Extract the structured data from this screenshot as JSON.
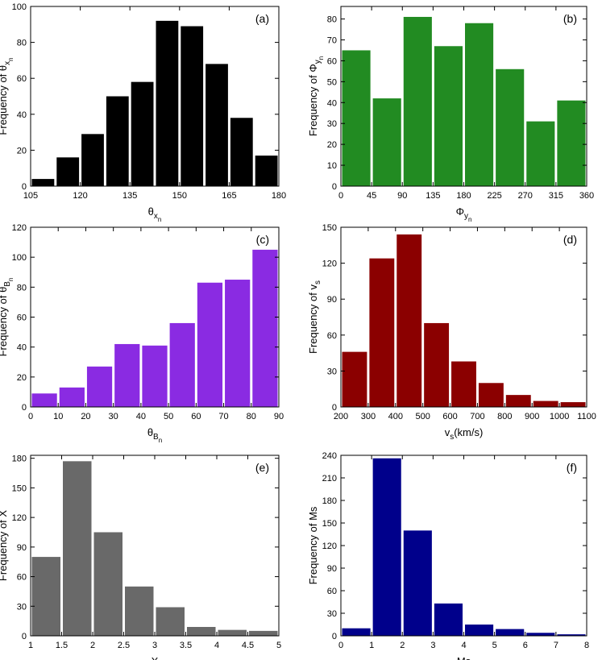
{
  "chart_data": [
    {
      "type": "histogram",
      "title": "(a)",
      "color": "#000000",
      "bins": [
        105,
        112.5,
        120,
        127.5,
        135,
        142.5,
        150,
        157.5,
        165,
        172.5,
        180
      ],
      "values": [
        4,
        16,
        29,
        50,
        58,
        92,
        89,
        68,
        38,
        17
      ],
      "xlim": [
        105,
        180
      ],
      "xticks": [
        105,
        120,
        135,
        150,
        165,
        180
      ],
      "ylim": [
        0,
        100
      ],
      "yticks": [
        0,
        20,
        40,
        60,
        80,
        100
      ],
      "xlabel": [
        "θ",
        [
          "x",
          [
            "n"
          ]
        ]
      ],
      "ylabel": [
        "Frequency of θ",
        [
          "x",
          [
            "n"
          ]
        ]
      ]
    },
    {
      "type": "histogram",
      "title": "(b)",
      "color": "#228b22",
      "bins": [
        0,
        45,
        90,
        135,
        180,
        225,
        270,
        315,
        360
      ],
      "values": [
        65,
        42,
        81,
        67,
        78,
        56,
        31,
        41
      ],
      "xlim": [
        0,
        360
      ],
      "xticks": [
        0,
        45,
        90,
        135,
        180,
        225,
        270,
        315,
        360
      ],
      "ylim": [
        0,
        86
      ],
      "yticks": [
        0,
        10,
        20,
        30,
        40,
        50,
        60,
        70,
        80
      ],
      "xlabel": [
        "Φ",
        [
          "y",
          [
            "n"
          ]
        ]
      ],
      "ylabel": [
        "Frequency of Φ",
        [
          "y",
          [
            "n"
          ]
        ]
      ]
    },
    {
      "type": "histogram",
      "title": "(c)",
      "color": "#8a2be2",
      "bins": [
        0,
        10,
        20,
        30,
        40,
        50,
        60,
        70,
        80,
        90
      ],
      "values": [
        9,
        13,
        27,
        42,
        41,
        56,
        83,
        85,
        105
      ],
      "xlim": [
        0,
        90
      ],
      "xticks": [
        0,
        10,
        20,
        30,
        40,
        50,
        60,
        70,
        80,
        90
      ],
      "ylim": [
        0,
        120
      ],
      "yticks": [
        0,
        20,
        40,
        60,
        80,
        100,
        120
      ],
      "xlabel": [
        "θ",
        [
          "B",
          [
            "n"
          ]
        ]
      ],
      "ylabel": [
        "Frequency of θ",
        [
          "B",
          [
            "n"
          ]
        ]
      ]
    },
    {
      "type": "histogram",
      "title": "(d)",
      "color": "#8b0000",
      "bins": [
        200,
        300,
        400,
        500,
        600,
        700,
        800,
        900,
        1000,
        1100
      ],
      "values": [
        46,
        124,
        144,
        70,
        38,
        20,
        10,
        5,
        4
      ],
      "xlim": [
        200,
        1100
      ],
      "xticks": [
        200,
        300,
        400,
        500,
        600,
        700,
        800,
        900,
        1000,
        1100
      ],
      "ylim": [
        0,
        150
      ],
      "yticks": [
        0,
        30,
        60,
        90,
        120,
        150
      ],
      "xlabel": [
        "v",
        [
          "s"
        ],
        "(km/s)"
      ],
      "ylabel": [
        "Frequency of v",
        [
          "s"
        ]
      ]
    },
    {
      "type": "histogram",
      "title": "(e)",
      "color": "#696969",
      "bins": [
        1,
        1.5,
        2,
        2.5,
        3,
        3.5,
        4,
        4.5,
        5
      ],
      "values": [
        80,
        177,
        105,
        50,
        29,
        9,
        6,
        5
      ],
      "xlim": [
        1,
        5
      ],
      "xticks": [
        1,
        1.5,
        2,
        2.5,
        3,
        3.5,
        4,
        4.5,
        5
      ],
      "ylim": [
        0,
        183
      ],
      "yticks": [
        0,
        30,
        60,
        90,
        120,
        150,
        180
      ],
      "xlabel": [
        "X"
      ],
      "ylabel": [
        "Frequency of X"
      ]
    },
    {
      "type": "histogram",
      "title": "(f)",
      "color": "#00008b",
      "bins": [
        0,
        1,
        2,
        3,
        4,
        5,
        6,
        7,
        8
      ],
      "values": [
        10,
        236,
        140,
        43,
        15,
        9,
        4,
        2
      ],
      "xlim": [
        0,
        8
      ],
      "xticks": [
        0,
        1,
        2,
        3,
        4,
        5,
        6,
        7,
        8
      ],
      "ylim": [
        0,
        240
      ],
      "yticks": [
        0,
        30,
        60,
        90,
        120,
        150,
        180,
        210,
        240
      ],
      "xlabel": [
        "Ms"
      ],
      "ylabel": [
        "Frequency of Ms"
      ]
    }
  ]
}
